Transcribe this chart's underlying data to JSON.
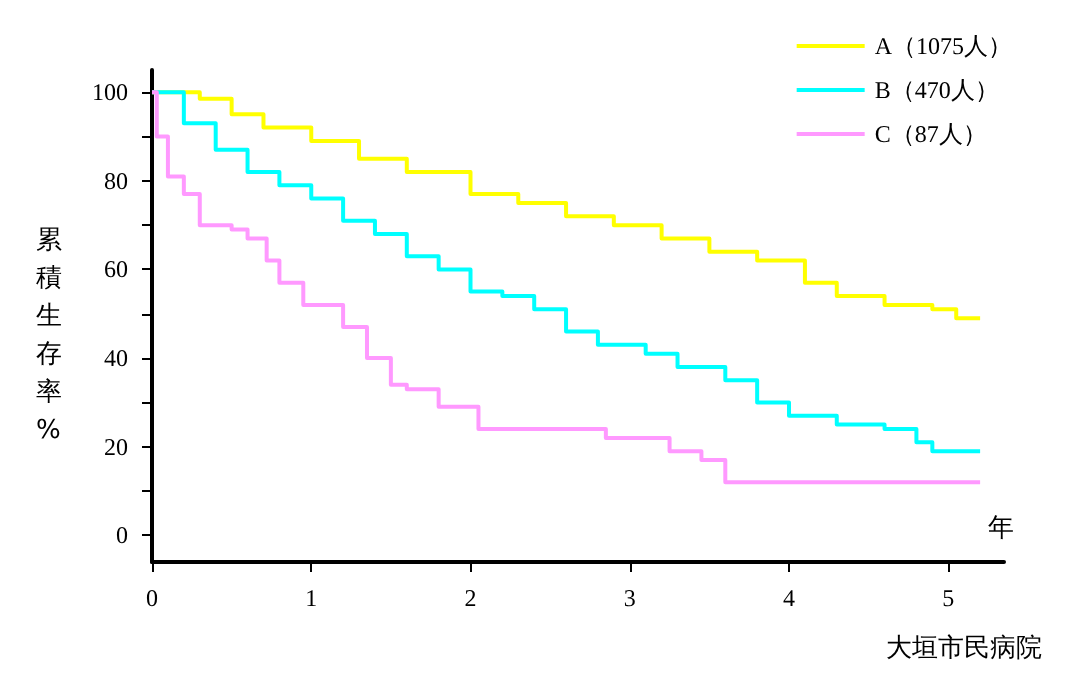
{
  "chart_data": {
    "type": "step",
    "xlabel": "年",
    "ylabel": "累積生存率%",
    "annotations": [
      "大垣市民病院"
    ],
    "xlim": [
      0,
      5.35
    ],
    "xticks": [
      0,
      1,
      2,
      3,
      4,
      5
    ],
    "ylim": [
      -6,
      105
    ],
    "yticks": [
      0,
      {
        "value": 10,
        "label": null
      },
      20,
      {
        "value": 30,
        "label": null
      },
      40,
      {
        "value": 50,
        "label": null
      },
      60,
      {
        "value": 70,
        "label": null
      },
      80,
      {
        "value": 90,
        "label": null
      },
      100
    ],
    "grid": false,
    "legend": "top right",
    "marker": "none",
    "line_style": "solid",
    "series": [
      {
        "name": "A（1075人）",
        "color": "#ffff00",
        "x": [
          0,
          0.3,
          0.5,
          0.7,
          1,
          1.3,
          1.6,
          2,
          2.3,
          2.6,
          2.9,
          3.2,
          3.5,
          3.8,
          4.1,
          4.3,
          4.6,
          4.9,
          5.05,
          5.2
        ],
        "values": [
          100,
          98.5,
          95,
          92,
          89,
          85,
          82,
          77,
          75,
          72,
          70,
          67,
          64,
          62,
          57,
          54,
          52,
          51,
          49,
          49
        ]
      },
      {
        "name": "B（470人）",
        "color": "#00ffff",
        "x": [
          0,
          0.05,
          0.2,
          0.4,
          0.6,
          0.8,
          1,
          1.2,
          1.4,
          1.6,
          1.8,
          2,
          2.2,
          2.4,
          2.6,
          2.8,
          3.1,
          3.3,
          3.6,
          3.8,
          4,
          4.3,
          4.6,
          4.8,
          4.9,
          5.2
        ],
        "values": [
          100,
          100,
          93,
          87,
          82,
          79,
          76,
          71,
          68,
          63,
          60,
          55,
          54,
          51,
          46,
          43,
          41,
          38,
          35,
          30,
          27,
          25,
          24,
          21,
          19,
          19
        ]
      },
      {
        "name": "C（87人）",
        "color": "#ff99ff",
        "x": [
          0,
          0.03,
          0.1,
          0.2,
          0.3,
          0.5,
          0.6,
          0.72,
          0.8,
          0.95,
          1.2,
          1.35,
          1.5,
          1.6,
          1.8,
          2.05,
          2.85,
          3.1,
          3.25,
          3.45,
          3.6,
          5.2
        ],
        "values": [
          100,
          90,
          81,
          77,
          70,
          69,
          67,
          62,
          57,
          52,
          47,
          40,
          34,
          33,
          29,
          24,
          22,
          22,
          19,
          17,
          12,
          12
        ]
      }
    ]
  }
}
